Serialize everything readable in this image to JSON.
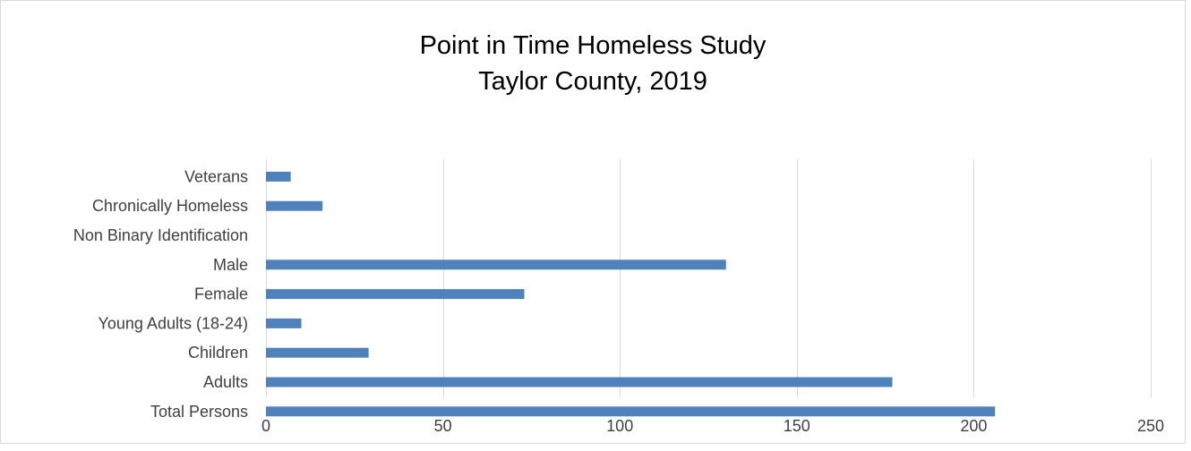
{
  "chart_data": {
    "type": "bar",
    "orientation": "horizontal",
    "title": [
      "Point in Time Homeless Study",
      "Taylor County, 2019"
    ],
    "categories": [
      "Veterans",
      "Chronically Homeless",
      "Non Binary Identification",
      "Male",
      "Female",
      "Young Adults (18-24)",
      "Children",
      "Adults",
      "Total Persons"
    ],
    "values": [
      7,
      16,
      0,
      130,
      73,
      10,
      29,
      177,
      206
    ],
    "xlim": [
      0,
      250
    ],
    "xticks": [
      0,
      50,
      100,
      150,
      200,
      250
    ],
    "grid": true,
    "legend": "none",
    "bar_color": "#4f81bd",
    "grid_color": "#d9d9d9"
  }
}
